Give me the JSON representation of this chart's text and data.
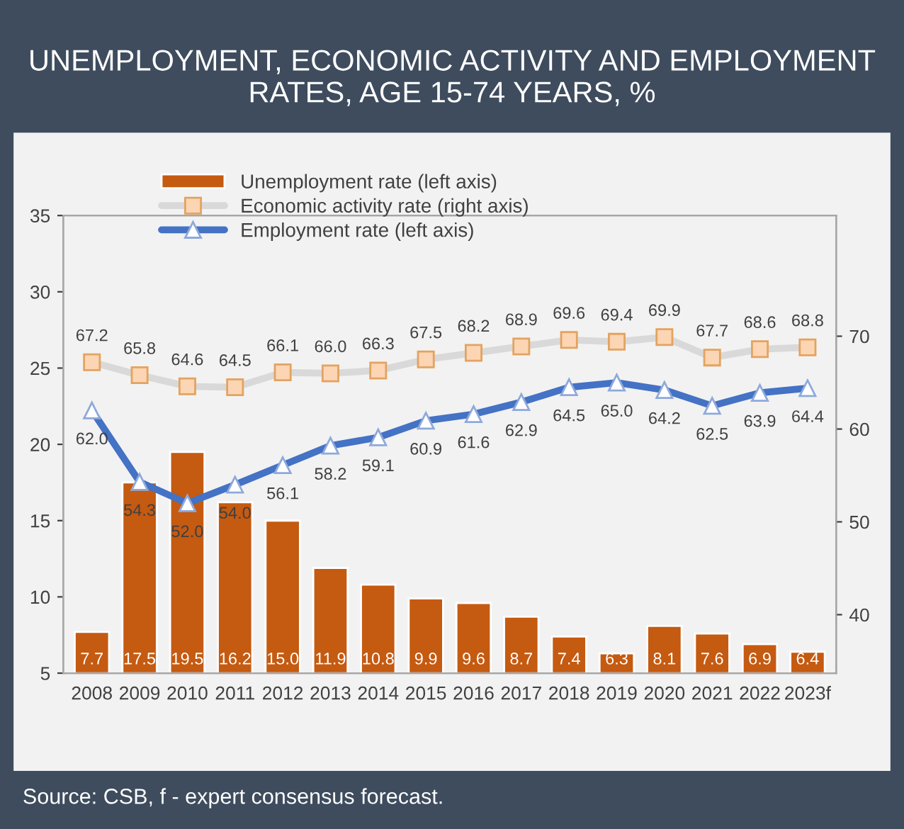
{
  "chart_data": {
    "type": "bar",
    "title": "UNEMPLOYMENT, ECONOMIC ACTIVITY AND EMPLOYMENT RATES, AGE 15-74 YEARS, %",
    "categories": [
      "2008",
      "2009",
      "2010",
      "2011",
      "2012",
      "2013",
      "2014",
      "2015",
      "2016",
      "2017",
      "2018",
      "2019",
      "2020",
      "2021",
      "2022",
      "2023f"
    ],
    "series": [
      {
        "name": "Unemployment rate (left axis)",
        "color": "#c55a11",
        "values": [
          7.7,
          17.5,
          19.5,
          16.2,
          15.0,
          11.9,
          10.8,
          9.9,
          9.6,
          8.7,
          7.4,
          6.3,
          8.1,
          7.6,
          6.9,
          6.4
        ],
        "value_labels": [
          "7.7",
          "17.5",
          "19.5",
          "16.2",
          "15.0",
          "11.9",
          "10.8",
          "9.9",
          "9.6",
          "8.7",
          "7.4",
          "6.3",
          "8.1",
          "7.6",
          "6.9",
          "6.4"
        ]
      },
      {
        "name": "Economic activity rate (right axis)",
        "type": "line",
        "axis": "y2",
        "marker": "square",
        "color": "#d9d9d9",
        "values": [
          67.2,
          65.8,
          64.6,
          64.5,
          66.1,
          66.0,
          66.3,
          67.5,
          68.2,
          68.9,
          69.6,
          69.4,
          69.9,
          67.7,
          68.6,
          68.8
        ],
        "value_labels": [
          "67.2",
          "65.8",
          "64.6",
          "64.5",
          "66.1",
          "66.0",
          "66.3",
          "67.5",
          "68.2",
          "68.9",
          "69.6",
          "69.4",
          "69.9",
          "67.7",
          "68.6",
          "68.8"
        ]
      },
      {
        "name": "Employment rate (left axis)",
        "type": "line",
        "axis": "y2",
        "marker": "triangle",
        "color": "#4472c4",
        "values": [
          62.0,
          54.3,
          52.0,
          54.0,
          56.1,
          58.2,
          59.1,
          60.9,
          61.6,
          62.9,
          64.5,
          65.0,
          64.2,
          62.5,
          63.9,
          64.4
        ],
        "value_labels": [
          "62.0",
          "54.3",
          "52.0",
          "54.0",
          "56.1",
          "58.2",
          "59.1",
          "60.9",
          "61.6",
          "62.9",
          "64.5",
          "65.0",
          "64.2",
          "62.5",
          "63.9",
          "64.4"
        ]
      }
    ],
    "ylim": [
      5,
      35
    ],
    "yticks": [
      5,
      10,
      15,
      20,
      25,
      30,
      35
    ],
    "y2lim": [
      33.7,
      83.0
    ],
    "y2ticks": [
      40,
      50,
      60,
      70
    ],
    "grid": false,
    "legend": "top left",
    "annotations": [
      "Source: CSB, f - expert consensus forecast."
    ]
  }
}
